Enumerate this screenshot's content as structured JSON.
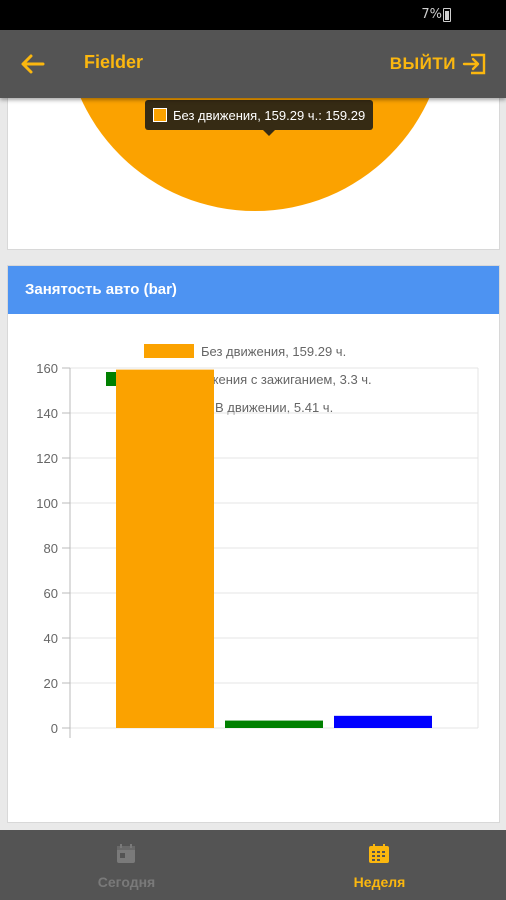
{
  "status_bar": {
    "battery_text": "7%"
  },
  "app_bar": {
    "title": "Fielder",
    "logout_label": "ВЫЙТИ",
    "accent_color": "#fbb70f"
  },
  "pie_card": {
    "tooltip_text": "Без движения, 159.29 ч.: 159.29",
    "slice_color": "#fba200"
  },
  "bar_card": {
    "title": "Занятость авто (bar)",
    "header_color": "#4d93f2"
  },
  "chart_data": {
    "type": "bar",
    "categories": [
      "Без движения, 159.29 ч.",
      "Без движения с зажиганием, 3.3 ч.",
      "В движении, 5.41 ч."
    ],
    "series": [
      {
        "name": "Без движения, 159.29 ч.",
        "value": 159.29,
        "color": "#fba200"
      },
      {
        "name": "Без движения с зажиганием, 3.3 ч.",
        "value": 3.3,
        "color": "#008000"
      },
      {
        "name": "В движении, 5.41 ч.",
        "value": 5.41,
        "color": "#0000ff"
      }
    ],
    "ylim": [
      0,
      160
    ],
    "yticks": [
      "0",
      "20",
      "40",
      "60",
      "80",
      "100",
      "120",
      "140",
      "160"
    ],
    "legend_placement": "top-center",
    "grid": true
  },
  "bottom_nav": {
    "items": [
      {
        "label": "Сегодня",
        "active": false
      },
      {
        "label": "Неделя",
        "active": true
      }
    ]
  }
}
